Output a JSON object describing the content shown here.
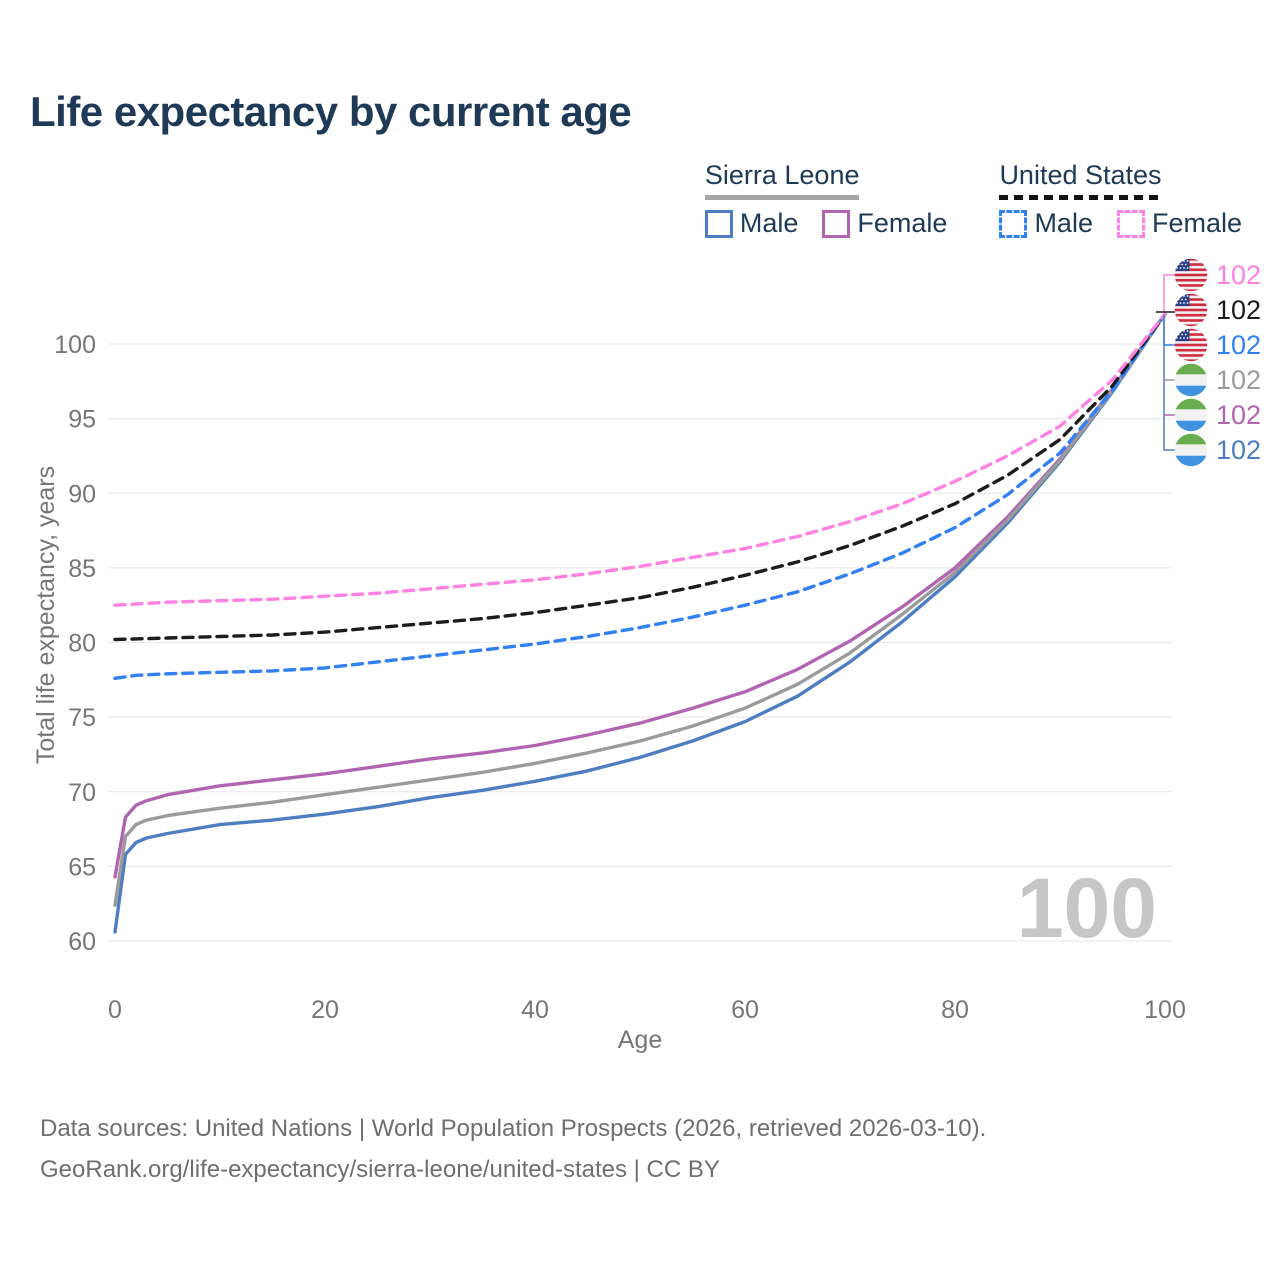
{
  "header": {
    "title": "Life expectancy by current age"
  },
  "legend": {
    "groups": [
      {
        "label": "Sierra Leone",
        "style": "solid",
        "items": [
          {
            "label": "Male"
          },
          {
            "label": "Female"
          }
        ]
      },
      {
        "label": "United States",
        "style": "dashed",
        "items": [
          {
            "label": "Male"
          },
          {
            "label": "Female"
          }
        ]
      }
    ]
  },
  "chart_data": {
    "type": "line",
    "title": "Life expectancy by current age",
    "xlabel": "Age",
    "ylabel": "Total life expectancy, years",
    "xlim": [
      0,
      100
    ],
    "ylim": [
      60,
      102
    ],
    "xticks": [
      0,
      20,
      40,
      60,
      80,
      100
    ],
    "yticks": [
      60,
      65,
      70,
      75,
      80,
      85,
      90,
      95,
      100
    ],
    "grid": "horizontal",
    "legend_position": "top-right",
    "watermark": "100",
    "series": [
      {
        "id": "sl_male",
        "name": "Sierra Leone Male",
        "color": "#4e7ec1",
        "dashed": false,
        "points": [
          [
            0,
            60.6
          ],
          [
            1,
            65.8
          ],
          [
            2,
            66.6
          ],
          [
            3,
            66.9
          ],
          [
            5,
            67.2
          ],
          [
            10,
            67.8
          ],
          [
            15,
            68.1
          ],
          [
            20,
            68.5
          ],
          [
            25,
            69.0
          ],
          [
            30,
            69.6
          ],
          [
            35,
            70.1
          ],
          [
            40,
            70.7
          ],
          [
            45,
            71.4
          ],
          [
            50,
            72.3
          ],
          [
            55,
            73.4
          ],
          [
            60,
            74.7
          ],
          [
            65,
            76.4
          ],
          [
            70,
            78.7
          ],
          [
            75,
            81.4
          ],
          [
            80,
            84.4
          ],
          [
            85,
            88.0
          ],
          [
            90,
            92.1
          ],
          [
            95,
            96.8
          ],
          [
            100,
            102
          ]
        ]
      },
      {
        "id": "sl_female",
        "name": "Sierra Leone Female",
        "color": "#b165b1",
        "dashed": false,
        "points": [
          [
            0,
            64.3
          ],
          [
            1,
            68.3
          ],
          [
            2,
            69.1
          ],
          [
            3,
            69.4
          ],
          [
            5,
            69.8
          ],
          [
            10,
            70.4
          ],
          [
            15,
            70.8
          ],
          [
            20,
            71.2
          ],
          [
            25,
            71.7
          ],
          [
            30,
            72.2
          ],
          [
            35,
            72.6
          ],
          [
            40,
            73.1
          ],
          [
            45,
            73.8
          ],
          [
            50,
            74.6
          ],
          [
            55,
            75.6
          ],
          [
            60,
            76.7
          ],
          [
            65,
            78.2
          ],
          [
            70,
            80.1
          ],
          [
            75,
            82.4
          ],
          [
            80,
            85.0
          ],
          [
            85,
            88.4
          ],
          [
            90,
            92.3
          ],
          [
            95,
            97.0
          ],
          [
            100,
            102
          ]
        ]
      },
      {
        "id": "sl_all",
        "name": "Sierra Leone",
        "color": "#9b9b9b",
        "dashed": false,
        "points": [
          [
            0,
            62.4
          ],
          [
            1,
            67.0
          ],
          [
            2,
            67.8
          ],
          [
            3,
            68.1
          ],
          [
            5,
            68.4
          ],
          [
            10,
            68.9
          ],
          [
            15,
            69.3
          ],
          [
            20,
            69.8
          ],
          [
            25,
            70.3
          ],
          [
            30,
            70.8
          ],
          [
            35,
            71.3
          ],
          [
            40,
            71.9
          ],
          [
            45,
            72.6
          ],
          [
            50,
            73.4
          ],
          [
            55,
            74.4
          ],
          [
            60,
            75.6
          ],
          [
            65,
            77.2
          ],
          [
            70,
            79.3
          ],
          [
            75,
            81.9
          ],
          [
            80,
            84.7
          ],
          [
            85,
            88.2
          ],
          [
            90,
            92.2
          ],
          [
            95,
            96.9
          ],
          [
            100,
            102
          ]
        ]
      },
      {
        "id": "us_male",
        "name": "United States Male",
        "color": "#3380f3",
        "dashed": true,
        "points": [
          [
            0,
            77.6
          ],
          [
            2,
            77.8
          ],
          [
            5,
            77.9
          ],
          [
            10,
            78.0
          ],
          [
            15,
            78.1
          ],
          [
            20,
            78.3
          ],
          [
            25,
            78.7
          ],
          [
            30,
            79.1
          ],
          [
            35,
            79.5
          ],
          [
            40,
            79.9
          ],
          [
            45,
            80.4
          ],
          [
            50,
            81.0
          ],
          [
            55,
            81.7
          ],
          [
            60,
            82.5
          ],
          [
            65,
            83.4
          ],
          [
            70,
            84.6
          ],
          [
            75,
            86.0
          ],
          [
            80,
            87.7
          ],
          [
            85,
            89.9
          ],
          [
            90,
            92.7
          ],
          [
            95,
            96.9
          ],
          [
            100,
            102
          ]
        ]
      },
      {
        "id": "us_all",
        "name": "United States",
        "color": "#1c1c1c",
        "dashed": true,
        "points": [
          [
            0,
            80.2
          ],
          [
            5,
            80.3
          ],
          [
            10,
            80.4
          ],
          [
            15,
            80.5
          ],
          [
            20,
            80.7
          ],
          [
            25,
            81.0
          ],
          [
            30,
            81.3
          ],
          [
            35,
            81.6
          ],
          [
            40,
            82.0
          ],
          [
            45,
            82.5
          ],
          [
            50,
            83.0
          ],
          [
            55,
            83.7
          ],
          [
            60,
            84.5
          ],
          [
            65,
            85.4
          ],
          [
            70,
            86.5
          ],
          [
            75,
            87.8
          ],
          [
            80,
            89.3
          ],
          [
            85,
            91.2
          ],
          [
            90,
            93.6
          ],
          [
            95,
            97.2
          ],
          [
            100,
            102
          ]
        ]
      },
      {
        "id": "us_female",
        "name": "United States Female",
        "color": "#ff82e2",
        "dashed": true,
        "points": [
          [
            0,
            82.5
          ],
          [
            5,
            82.7
          ],
          [
            10,
            82.8
          ],
          [
            15,
            82.9
          ],
          [
            20,
            83.1
          ],
          [
            25,
            83.3
          ],
          [
            30,
            83.6
          ],
          [
            35,
            83.9
          ],
          [
            40,
            84.2
          ],
          [
            45,
            84.6
          ],
          [
            50,
            85.1
          ],
          [
            55,
            85.7
          ],
          [
            60,
            86.3
          ],
          [
            65,
            87.1
          ],
          [
            70,
            88.1
          ],
          [
            75,
            89.3
          ],
          [
            80,
            90.8
          ],
          [
            85,
            92.5
          ],
          [
            90,
            94.5
          ],
          [
            95,
            97.6
          ],
          [
            100,
            102
          ]
        ]
      }
    ],
    "endpoint_labels": [
      {
        "flag": "us",
        "value": "102"
      },
      {
        "flag": "us",
        "value": "102"
      },
      {
        "flag": "us",
        "value": "102"
      },
      {
        "flag": "sl",
        "value": "102"
      },
      {
        "flag": "sl",
        "value": "102"
      },
      {
        "flag": "sl",
        "value": "102"
      }
    ]
  },
  "footer": {
    "line1": "Data sources: United Nations | World Population Prospects (2026, retrieved 2026-03-10).",
    "line2": "GeoRank.org/life-expectancy/sierra-leone/united-states | CC BY"
  }
}
